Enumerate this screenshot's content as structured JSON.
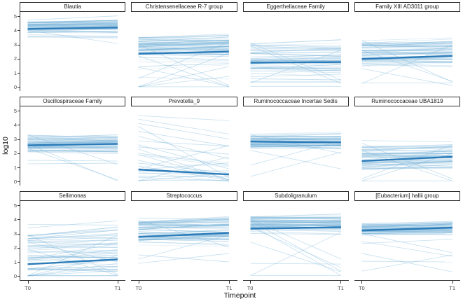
{
  "chart_data": {
    "type": "line",
    "title": "",
    "xlabel": "Timepoint",
    "ylabel": "log10",
    "x_categories": [
      "T0",
      "T1"
    ],
    "y_ticks": [
      5,
      4,
      3,
      2,
      1,
      0
    ],
    "ylim": [
      -0.28,
      5.3
    ],
    "x_positions_pct": [
      7,
      92.5
    ],
    "layout": {
      "columns": 4,
      "rows": 3,
      "grid": "off",
      "legend": "none",
      "facet_axes": "outer-only"
    },
    "colors": {
      "thin_line": "#6faed6",
      "bold_line": "#2b7bb9",
      "axis_line": "#333333",
      "strip_border": "#2e2e2e",
      "strip_text": "#1a1a1a",
      "tick_text": "#474747",
      "title_text": "#111111",
      "panel_bg": "#ffffff"
    },
    "seed": 7,
    "facets": [
      {
        "title": "Blautia",
        "trend": [
          4.1,
          4.2
        ],
        "band": [
          3.5,
          4.8
        ],
        "dense": [
          3.85,
          4.55
        ],
        "n_lines": 50,
        "wobble": 0.18,
        "drift": 0.08,
        "outliers": [
          [
            4.0,
            3.07
          ],
          [
            4.72,
            5.02
          ],
          [
            3.6,
            3.55
          ]
        ]
      },
      {
        "title": "Christensenellaceae R-7 group",
        "trend": [
          2.35,
          2.5
        ],
        "band": [
          0.6,
          3.55
        ],
        "dense": [
          2.3,
          3.55
        ],
        "n_lines": 60,
        "wobble": 0.3,
        "drift": 0.1,
        "outliers": [
          [
            0.02,
            0.02
          ],
          [
            0.02,
            2.4
          ],
          [
            3.0,
            0.12
          ],
          [
            2.2,
            0.02
          ],
          [
            0.6,
            3.2
          ],
          [
            0.02,
            1.45
          ],
          [
            1.4,
            0.05
          ],
          [
            0.02,
            0.75
          ]
        ]
      },
      {
        "title": "Eggerthellaceae Family",
        "trend": [
          1.72,
          1.76
        ],
        "band": [
          0.3,
          3.15
        ],
        "dense": [
          1.1,
          3.05
        ],
        "n_lines": 55,
        "wobble": 0.3,
        "drift": 0.05,
        "outliers": [
          [
            3.1,
            0.5
          ],
          [
            0.3,
            2.6
          ],
          [
            0.05,
            0.05
          ],
          [
            2.9,
            0.25
          ],
          [
            0.4,
            0.4
          ]
        ]
      },
      {
        "title": "Family XIII AD3011 group",
        "trend": [
          1.98,
          2.2
        ],
        "band": [
          1.2,
          3.35
        ],
        "dense": [
          1.75,
          3.25
        ],
        "n_lines": 60,
        "wobble": 0.3,
        "drift": 0.15,
        "outliers": [
          [
            3.3,
            0.35
          ],
          [
            0.25,
            3.0
          ],
          [
            2.6,
            0.4
          ],
          [
            0.3,
            0.3
          ],
          [
            1.3,
            0.1
          ]
        ]
      },
      {
        "title": "Oscillospiraceae Family",
        "trend": [
          2.56,
          2.66
        ],
        "band": [
          1.95,
          3.35
        ],
        "dense": [
          2.05,
          3.3
        ],
        "n_lines": 55,
        "wobble": 0.22,
        "drift": 0.08,
        "outliers": [
          [
            2.65,
            0.05
          ],
          [
            2.35,
            0.12
          ],
          [
            1.25,
            1.3
          ],
          [
            1.5,
            1.45
          ],
          [
            3.3,
            1.2
          ]
        ]
      },
      {
        "title": "Prevotella_9",
        "trend": [
          0.85,
          0.5
        ],
        "band": [
          0.1,
          4.3
        ],
        "dense": [
          0.2,
          2.5
        ],
        "n_lines": 8,
        "wobble": 0.8,
        "drift": -0.5,
        "outliers": [
          [
            4.65,
            4.3
          ],
          [
            4.4,
            3.35
          ],
          [
            3.9,
            0.27
          ],
          [
            3.55,
            2.5
          ],
          [
            2.85,
            2.5
          ],
          [
            2.3,
            0.1
          ],
          [
            1.9,
            0.15
          ],
          [
            1.5,
            0.12
          ],
          [
            1.1,
            0.08
          ],
          [
            0.1,
            0.1
          ],
          [
            0.9,
            2.55
          ],
          [
            0.05,
            1.75
          ],
          [
            2.6,
            0.9
          ],
          [
            3.2,
            1.6
          ],
          [
            0.6,
            0.5
          ],
          [
            1.3,
            0.6
          ],
          [
            2.0,
            1.2
          ],
          [
            0.3,
            0.05
          ],
          [
            4.1,
            3.0
          ],
          [
            0.05,
            0.6
          ]
        ]
      },
      {
        "title": "Ruminococcaceae Incertae Sedis",
        "trend": [
          2.82,
          2.76
        ],
        "band": [
          2.15,
          3.35
        ],
        "dense": [
          2.35,
          3.25
        ],
        "n_lines": 55,
        "wobble": 0.2,
        "drift": -0.05,
        "outliers": [
          [
            0.36,
            2.07
          ],
          [
            1.15,
            2.9
          ],
          [
            2.2,
            0.9
          ],
          [
            3.3,
            2.0
          ]
        ]
      },
      {
        "title": "Ruminococcaceae UBA1819",
        "trend": [
          1.45,
          1.75
        ],
        "band": [
          0.7,
          2.7
        ],
        "dense": [
          0.9,
          2.5
        ],
        "n_lines": 55,
        "wobble": 0.3,
        "drift": 0.2,
        "outliers": [
          [
            0.2,
            2.6
          ],
          [
            2.7,
            0.2
          ],
          [
            0.05,
            2.0
          ],
          [
            2.2,
            0.05
          ],
          [
            0.05,
            0.05
          ],
          [
            2.9,
            2.8
          ]
        ]
      },
      {
        "title": "Sellimonas",
        "trend": [
          0.84,
          1.18
        ],
        "band": [
          0.1,
          3.1
        ],
        "dense": [
          0.4,
          2.9
        ],
        "n_lines": 42,
        "wobble": 0.45,
        "drift": 0.3,
        "outliers": [
          [
            3.65,
            3.6
          ],
          [
            3.4,
            3.9
          ],
          [
            0.02,
            2.9
          ],
          [
            0.02,
            1.45
          ],
          [
            0.02,
            0.9
          ],
          [
            0.02,
            0.4
          ],
          [
            2.9,
            0.12
          ],
          [
            1.9,
            0.05
          ],
          [
            0.02,
            0.02
          ],
          [
            0.05,
            0.05
          ],
          [
            2.4,
            1.0
          ],
          [
            1.2,
            2.3
          ],
          [
            0.02,
            0.65
          ]
        ]
      },
      {
        "title": "Streptococcus",
        "trend": [
          2.76,
          3.05
        ],
        "band": [
          1.85,
          4.05
        ],
        "dense": [
          2.15,
          3.85
        ],
        "n_lines": 58,
        "wobble": 0.35,
        "drift": 0.3,
        "outliers": [
          [
            0.9,
            1.6
          ],
          [
            1.2,
            2.9
          ],
          [
            3.95,
            2.05
          ],
          [
            4.1,
            4.0
          ],
          [
            1.5,
            1.0
          ]
        ]
      },
      {
        "title": "Subdoligranulum",
        "trend": [
          3.35,
          3.45
        ],
        "band": [
          3.05,
          4.3
        ],
        "dense": [
          3.3,
          4.2
        ],
        "n_lines": 58,
        "wobble": 0.2,
        "drift": 0.05,
        "outliers": [
          [
            3.9,
            0.35
          ],
          [
            3.6,
            0.05
          ],
          [
            3.45,
            0.6
          ],
          [
            4.0,
            1.2
          ],
          [
            0.9,
            0.85
          ],
          [
            0.05,
            0.05
          ],
          [
            0.05,
            3.1
          ],
          [
            3.0,
            2.95
          ],
          [
            2.4,
            0.3
          ]
        ]
      },
      {
        "title": "[Eubacterium] hallii group",
        "trend": [
          3.22,
          3.42
        ],
        "band": [
          2.8,
          3.8
        ],
        "dense": [
          2.95,
          3.7
        ],
        "n_lines": 52,
        "wobble": 0.2,
        "drift": 0.12,
        "outliers": [
          [
            2.45,
            1.4
          ],
          [
            3.0,
            1.65
          ],
          [
            0.35,
            1.5
          ],
          [
            1.05,
            1.0
          ],
          [
            2.3,
            2.6
          ],
          [
            1.6,
            0.3
          ]
        ]
      }
    ]
  }
}
